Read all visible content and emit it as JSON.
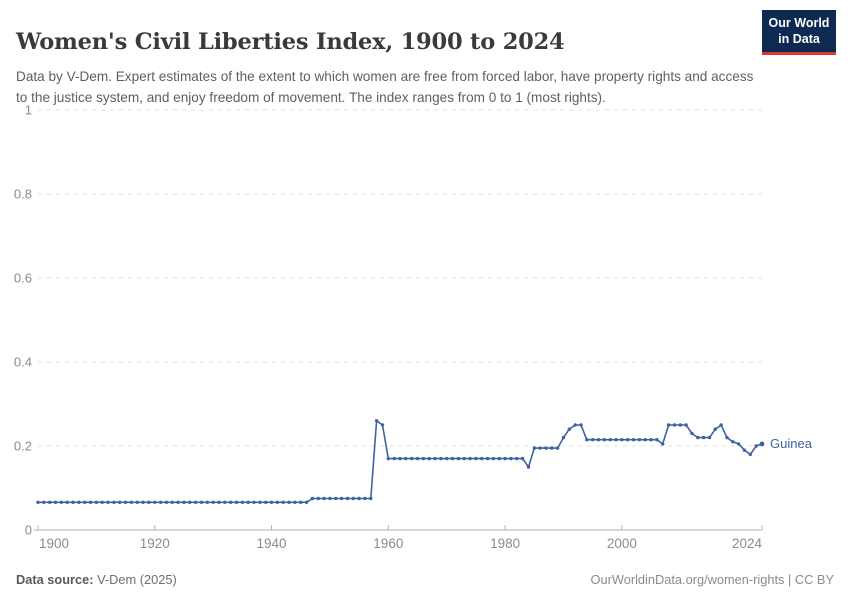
{
  "header": {
    "title": "Women's Civil Liberties Index, 1900 to 2024",
    "subtitle": "Data by V-Dem. Expert estimates of the extent to which women are free from forced labor, have property rights and access to the justice system, and enjoy freedom of movement. The index ranges from 0 to 1 (most rights).",
    "logo": {
      "line1": "Our World",
      "line2": "in Data",
      "bg_color": "#0e2a52",
      "accent_color": "#d93a2b"
    }
  },
  "footer": {
    "source_label": "Data source:",
    "source_value": " V-Dem (2025)",
    "link_text": "OurWorldinData.org/women-rights | CC BY"
  },
  "chart_data": {
    "type": "line",
    "title": "Women's Civil Liberties Index, 1900 to 2024",
    "entity_label": "Guinea",
    "xlabel": "",
    "ylabel": "",
    "xlim": [
      1900,
      2024
    ],
    "ylim": [
      0,
      1
    ],
    "yticks": [
      0,
      0.2,
      0.4,
      0.6,
      0.8,
      1
    ],
    "ytick_labels": [
      "0",
      "0.2",
      "0.4",
      "0.6",
      "0.8",
      "1"
    ],
    "xticks": [
      1900,
      1920,
      1940,
      1960,
      1980,
      2000,
      2024
    ],
    "grid": "horizontal-dashed",
    "legend_position": "line-end-label",
    "colors": {
      "line": "#3d639f",
      "grid": "#e3e3e3",
      "axis": "#b3b3b3",
      "tick_label": "#8b8b8b"
    },
    "series": [
      {
        "name": "Guinea",
        "color": "#3d639f",
        "points": [
          [
            1900,
            0.066
          ],
          [
            1901,
            0.066
          ],
          [
            1902,
            0.066
          ],
          [
            1903,
            0.066
          ],
          [
            1904,
            0.066
          ],
          [
            1905,
            0.066
          ],
          [
            1906,
            0.066
          ],
          [
            1907,
            0.066
          ],
          [
            1908,
            0.066
          ],
          [
            1909,
            0.066
          ],
          [
            1910,
            0.066
          ],
          [
            1911,
            0.066
          ],
          [
            1912,
            0.066
          ],
          [
            1913,
            0.066
          ],
          [
            1914,
            0.066
          ],
          [
            1915,
            0.066
          ],
          [
            1916,
            0.066
          ],
          [
            1917,
            0.066
          ],
          [
            1918,
            0.066
          ],
          [
            1919,
            0.066
          ],
          [
            1920,
            0.066
          ],
          [
            1921,
            0.066
          ],
          [
            1922,
            0.066
          ],
          [
            1923,
            0.066
          ],
          [
            1924,
            0.066
          ],
          [
            1925,
            0.066
          ],
          [
            1926,
            0.066
          ],
          [
            1927,
            0.066
          ],
          [
            1928,
            0.066
          ],
          [
            1929,
            0.066
          ],
          [
            1930,
            0.066
          ],
          [
            1931,
            0.066
          ],
          [
            1932,
            0.066
          ],
          [
            1933,
            0.066
          ],
          [
            1934,
            0.066
          ],
          [
            1935,
            0.066
          ],
          [
            1936,
            0.066
          ],
          [
            1937,
            0.066
          ],
          [
            1938,
            0.066
          ],
          [
            1939,
            0.066
          ],
          [
            1940,
            0.066
          ],
          [
            1941,
            0.066
          ],
          [
            1942,
            0.066
          ],
          [
            1943,
            0.066
          ],
          [
            1944,
            0.066
          ],
          [
            1945,
            0.066
          ],
          [
            1946,
            0.066
          ],
          [
            1947,
            0.075
          ],
          [
            1948,
            0.075
          ],
          [
            1949,
            0.075
          ],
          [
            1950,
            0.075
          ],
          [
            1951,
            0.075
          ],
          [
            1952,
            0.075
          ],
          [
            1953,
            0.075
          ],
          [
            1954,
            0.075
          ],
          [
            1955,
            0.075
          ],
          [
            1956,
            0.075
          ],
          [
            1957,
            0.075
          ],
          [
            1958,
            0.26
          ],
          [
            1959,
            0.25
          ],
          [
            1960,
            0.17
          ],
          [
            1961,
            0.17
          ],
          [
            1962,
            0.17
          ],
          [
            1963,
            0.17
          ],
          [
            1964,
            0.17
          ],
          [
            1965,
            0.17
          ],
          [
            1966,
            0.17
          ],
          [
            1967,
            0.17
          ],
          [
            1968,
            0.17
          ],
          [
            1969,
            0.17
          ],
          [
            1970,
            0.17
          ],
          [
            1971,
            0.17
          ],
          [
            1972,
            0.17
          ],
          [
            1973,
            0.17
          ],
          [
            1974,
            0.17
          ],
          [
            1975,
            0.17
          ],
          [
            1976,
            0.17
          ],
          [
            1977,
            0.17
          ],
          [
            1978,
            0.17
          ],
          [
            1979,
            0.17
          ],
          [
            1980,
            0.17
          ],
          [
            1981,
            0.17
          ],
          [
            1982,
            0.17
          ],
          [
            1983,
            0.17
          ],
          [
            1984,
            0.15
          ],
          [
            1985,
            0.195
          ],
          [
            1986,
            0.195
          ],
          [
            1987,
            0.195
          ],
          [
            1988,
            0.195
          ],
          [
            1989,
            0.195
          ],
          [
            1990,
            0.22
          ],
          [
            1991,
            0.24
          ],
          [
            1992,
            0.25
          ],
          [
            1993,
            0.25
          ],
          [
            1994,
            0.215
          ],
          [
            1995,
            0.215
          ],
          [
            1996,
            0.215
          ],
          [
            1997,
            0.215
          ],
          [
            1998,
            0.215
          ],
          [
            1999,
            0.215
          ],
          [
            2000,
            0.215
          ],
          [
            2001,
            0.215
          ],
          [
            2002,
            0.215
          ],
          [
            2003,
            0.215
          ],
          [
            2004,
            0.215
          ],
          [
            2005,
            0.215
          ],
          [
            2006,
            0.215
          ],
          [
            2007,
            0.205
          ],
          [
            2008,
            0.25
          ],
          [
            2009,
            0.25
          ],
          [
            2010,
            0.25
          ],
          [
            2011,
            0.25
          ],
          [
            2012,
            0.23
          ],
          [
            2013,
            0.22
          ],
          [
            2014,
            0.22
          ],
          [
            2015,
            0.22
          ],
          [
            2016,
            0.24
          ],
          [
            2017,
            0.25
          ],
          [
            2018,
            0.22
          ],
          [
            2019,
            0.21
          ],
          [
            2020,
            0.205
          ],
          [
            2021,
            0.19
          ],
          [
            2022,
            0.18
          ],
          [
            2023,
            0.2
          ],
          [
            2024,
            0.205
          ]
        ]
      }
    ]
  }
}
